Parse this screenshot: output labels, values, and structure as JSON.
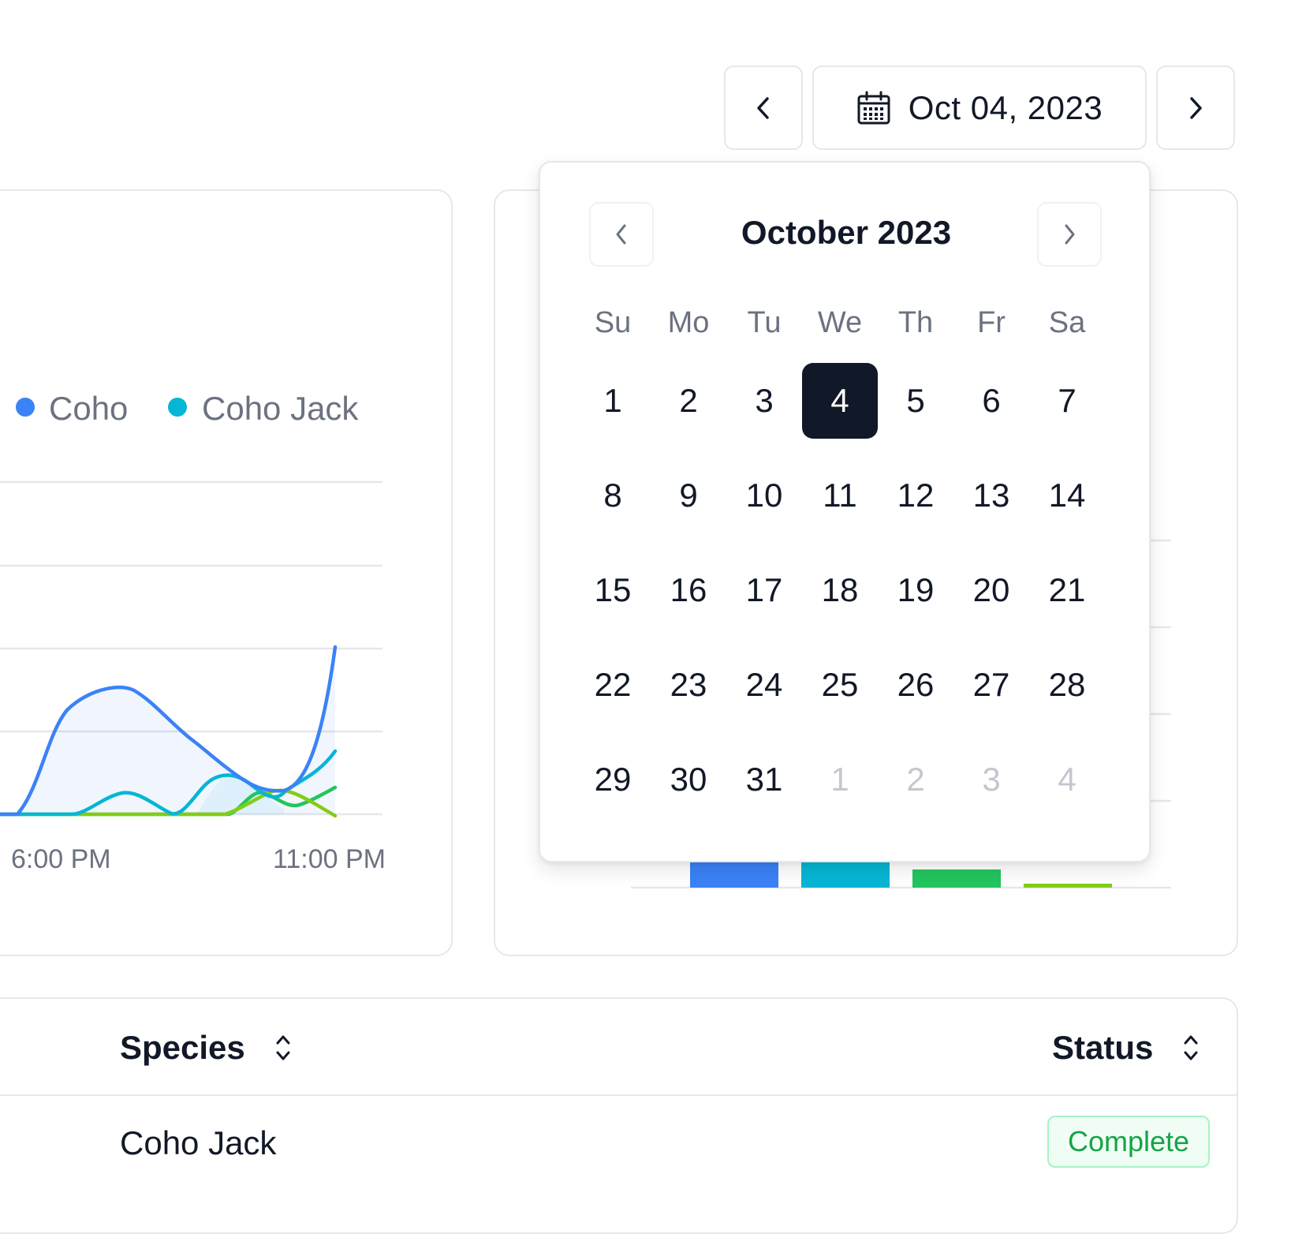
{
  "date_nav": {
    "current_date": "Oct 04, 2023",
    "prev_icon": "chevron-left-icon",
    "next_icon": "chevron-right-icon",
    "calendar_icon": "calendar-icon"
  },
  "chart_data": [
    {
      "type": "line",
      "x": [
        "6:00 PM",
        "11:00 PM"
      ],
      "series": [
        {
          "name": "Coho",
          "color": "#3b82f6"
        },
        {
          "name": "Coho Jack",
          "color": "#06b6d4"
        },
        {
          "color": "#22c55e"
        },
        {
          "color": "#84cc16"
        }
      ],
      "grid": true,
      "legend": "top-right"
    },
    {
      "type": "bar",
      "series": [
        {
          "color": "#3b82f6"
        },
        {
          "color": "#06b6d4"
        },
        {
          "color": "#22c55e"
        },
        {
          "color": "#84cc16"
        }
      ],
      "grid": true
    }
  ],
  "calendar": {
    "title": "October 2023",
    "weekdays": [
      "Su",
      "Mo",
      "Tu",
      "We",
      "Th",
      "Fr",
      "Sa"
    ],
    "weeks": [
      [
        "1",
        "2",
        "3",
        "4",
        "5",
        "6",
        "7"
      ],
      [
        "8",
        "9",
        "10",
        "11",
        "12",
        "13",
        "14"
      ],
      [
        "15",
        "16",
        "17",
        "18",
        "19",
        "20",
        "21"
      ],
      [
        "22",
        "23",
        "24",
        "25",
        "26",
        "27",
        "28"
      ],
      [
        "29",
        "30",
        "31",
        "1",
        "2",
        "3",
        "4"
      ]
    ],
    "selected_day": "4",
    "outside_month": [
      "1",
      "2",
      "3",
      "4"
    ]
  },
  "table": {
    "headers": {
      "species": "Species",
      "status": "Status"
    },
    "sort_icon": "sort-icon",
    "rows": [
      {
        "species": "Coho Jack",
        "status": "Complete"
      }
    ]
  }
}
